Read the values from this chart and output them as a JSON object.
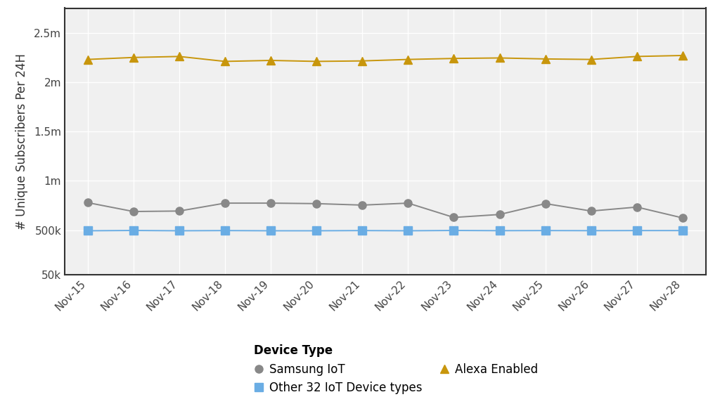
{
  "dates": [
    "Nov-15",
    "Nov-16",
    "Nov-17",
    "Nov-18",
    "Nov-19",
    "Nov-20",
    "Nov-21",
    "Nov-22",
    "Nov-23",
    "Nov-24",
    "Nov-25",
    "Nov-26",
    "Nov-27",
    "Nov-28"
  ],
  "samsung_iot": [
    780000,
    690000,
    695000,
    775000,
    775000,
    770000,
    755000,
    775000,
    630000,
    660000,
    770000,
    695000,
    735000,
    625000
  ],
  "alexa_enabled": [
    2230000,
    2250000,
    2260000,
    2210000,
    2220000,
    2210000,
    2215000,
    2230000,
    2240000,
    2245000,
    2235000,
    2230000,
    2260000,
    2270000
  ],
  "other_32": [
    495000,
    498000,
    495000,
    497000,
    495000,
    495000,
    497000,
    495000,
    498000,
    496000,
    497000,
    496000,
    497000,
    497000
  ],
  "samsung_color": "#888888",
  "alexa_color": "#C8960C",
  "other_color": "#6AADE4",
  "ylabel": "# Unique Subscribers Per 24H",
  "ylim_min": 50000,
  "ylim_max": 2750000,
  "yticks": [
    50000,
    500000,
    1000000,
    1500000,
    2000000,
    2500000
  ],
  "ytick_labels": [
    "50k",
    "500k",
    "1m",
    "1.5m",
    "2m",
    "2.5m"
  ],
  "legend_title": "Device Type",
  "legend_labels": [
    "Samsung IoT",
    "Alexa Enabled",
    "Other 32 IoT Device types"
  ],
  "plot_bg_color": "#f0f0f0",
  "fig_bg_color": "#ffffff",
  "grid_color": "#ffffff",
  "spine_color": "#333333",
  "marker_size_samsung": 8,
  "marker_size_alexa": 9,
  "marker_size_other": 8,
  "linewidth": 1.4,
  "tick_fontsize": 11,
  "ylabel_fontsize": 12,
  "legend_fontsize": 12
}
